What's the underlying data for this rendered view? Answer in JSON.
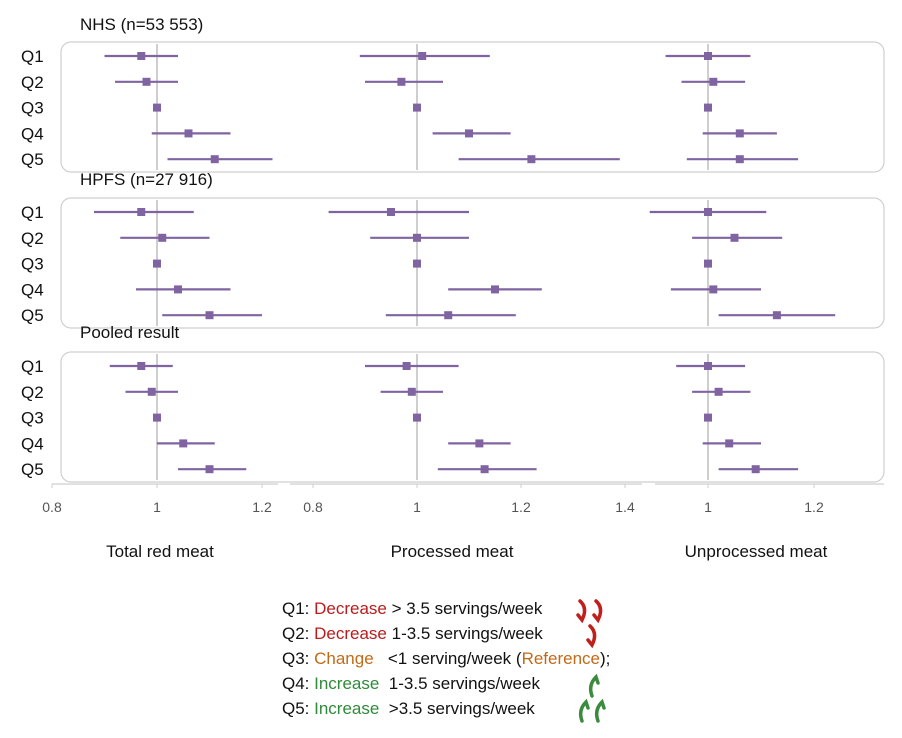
{
  "chart_data": {
    "type": "forest",
    "rows": [
      "Q1",
      "Q2",
      "Q3",
      "Q4",
      "Q5"
    ],
    "columns": [
      {
        "name": "Total red meat",
        "ticks": [
          "0.8",
          "1",
          "1.2"
        ],
        "xlim": [
          0.8,
          1.23
        ],
        "reference": 1
      },
      {
        "name": "Processed meat",
        "ticks": [
          "0.8",
          "1",
          "1.2",
          "1.4"
        ],
        "xlim": [
          0.75,
          1.43
        ],
        "reference": 1
      },
      {
        "name": "Unprocessed meat",
        "ticks": [
          "1",
          "1.2"
        ],
        "xlim": [
          0.92,
          1.33
        ],
        "reference": 1
      }
    ],
    "panels": [
      {
        "title": "NHS (n=53 553)",
        "estimates": [
          [
            {
              "est": 0.97,
              "lo": 0.9,
              "hi": 1.04
            },
            {
              "est": 0.98,
              "lo": 0.92,
              "hi": 1.04
            },
            {
              "est": 1.0,
              "lo": 1.0,
              "hi": 1.0
            },
            {
              "est": 1.06,
              "lo": 0.99,
              "hi": 1.14
            },
            {
              "est": 1.11,
              "lo": 1.02,
              "hi": 1.22
            }
          ],
          [
            {
              "est": 1.01,
              "lo": 0.89,
              "hi": 1.14
            },
            {
              "est": 0.97,
              "lo": 0.9,
              "hi": 1.05
            },
            {
              "est": 1.0,
              "lo": 1.0,
              "hi": 1.0
            },
            {
              "est": 1.1,
              "lo": 1.03,
              "hi": 1.18
            },
            {
              "est": 1.22,
              "lo": 1.08,
              "hi": 1.39
            }
          ],
          [
            {
              "est": 1.0,
              "lo": 0.92,
              "hi": 1.08
            },
            {
              "est": 1.01,
              "lo": 0.95,
              "hi": 1.07
            },
            {
              "est": 1.0,
              "lo": 1.0,
              "hi": 1.0
            },
            {
              "est": 1.06,
              "lo": 0.99,
              "hi": 1.13
            },
            {
              "est": 1.06,
              "lo": 0.96,
              "hi": 1.17
            }
          ]
        ]
      },
      {
        "title": "HPFS (n=27 916)",
        "estimates": [
          [
            {
              "est": 0.97,
              "lo": 0.88,
              "hi": 1.07
            },
            {
              "est": 1.01,
              "lo": 0.93,
              "hi": 1.1
            },
            {
              "est": 1.0,
              "lo": 1.0,
              "hi": 1.0
            },
            {
              "est": 1.04,
              "lo": 0.96,
              "hi": 1.14
            },
            {
              "est": 1.1,
              "lo": 1.01,
              "hi": 1.2
            }
          ],
          [
            {
              "est": 0.95,
              "lo": 0.83,
              "hi": 1.1
            },
            {
              "est": 1.0,
              "lo": 0.91,
              "hi": 1.1
            },
            {
              "est": 1.0,
              "lo": 1.0,
              "hi": 1.0
            },
            {
              "est": 1.15,
              "lo": 1.06,
              "hi": 1.24
            },
            {
              "est": 1.06,
              "lo": 0.94,
              "hi": 1.19
            }
          ],
          [
            {
              "est": 1.0,
              "lo": 0.89,
              "hi": 1.11
            },
            {
              "est": 1.05,
              "lo": 0.97,
              "hi": 1.14
            },
            {
              "est": 1.0,
              "lo": 1.0,
              "hi": 1.0
            },
            {
              "est": 1.01,
              "lo": 0.93,
              "hi": 1.1
            },
            {
              "est": 1.13,
              "lo": 1.02,
              "hi": 1.24
            }
          ]
        ]
      },
      {
        "title": "Pooled result",
        "estimates": [
          [
            {
              "est": 0.97,
              "lo": 0.91,
              "hi": 1.03
            },
            {
              "est": 0.99,
              "lo": 0.94,
              "hi": 1.04
            },
            {
              "est": 1.0,
              "lo": 1.0,
              "hi": 1.0
            },
            {
              "est": 1.05,
              "lo": 1.0,
              "hi": 1.11
            },
            {
              "est": 1.1,
              "lo": 1.04,
              "hi": 1.17
            }
          ],
          [
            {
              "est": 0.98,
              "lo": 0.9,
              "hi": 1.08
            },
            {
              "est": 0.99,
              "lo": 0.93,
              "hi": 1.05
            },
            {
              "est": 1.0,
              "lo": 1.0,
              "hi": 1.0
            },
            {
              "est": 1.12,
              "lo": 1.06,
              "hi": 1.18
            },
            {
              "est": 1.13,
              "lo": 1.04,
              "hi": 1.23
            }
          ],
          [
            {
              "est": 1.0,
              "lo": 0.94,
              "hi": 1.07
            },
            {
              "est": 1.02,
              "lo": 0.97,
              "hi": 1.08
            },
            {
              "est": 1.0,
              "lo": 1.0,
              "hi": 1.0
            },
            {
              "est": 1.04,
              "lo": 0.99,
              "hi": 1.1
            },
            {
              "est": 1.09,
              "lo": 1.02,
              "hi": 1.17
            }
          ]
        ]
      }
    ],
    "colors": {
      "marker": "#8064a2",
      "reference_line": "#bdbdbd",
      "panel_border": "#cfcfcf"
    }
  },
  "legend": [
    {
      "q": "Q1: ",
      "word": "Decrease",
      "tone": "decrease",
      "text": " > 3.5 servings/week",
      "arrows": "down2"
    },
    {
      "q": "Q2: ",
      "word": "Decrease",
      "tone": "decrease",
      "text": " 1-3.5 servings/week",
      "arrows": "down1"
    },
    {
      "q": "Q3: ",
      "word": "Change",
      "tone": "change",
      "text": "   <1 serving/week (",
      "ref": "Reference",
      "tail": ");",
      "arrows": ""
    },
    {
      "q": "Q4: ",
      "word": "Increase",
      "tone": "increase",
      "text": "  1-3.5 servings/week",
      "arrows": "up1"
    },
    {
      "q": "Q5: ",
      "word": "Increase",
      "tone": "increase",
      "text": "  >3.5 servings/week",
      "arrows": "up2"
    }
  ]
}
